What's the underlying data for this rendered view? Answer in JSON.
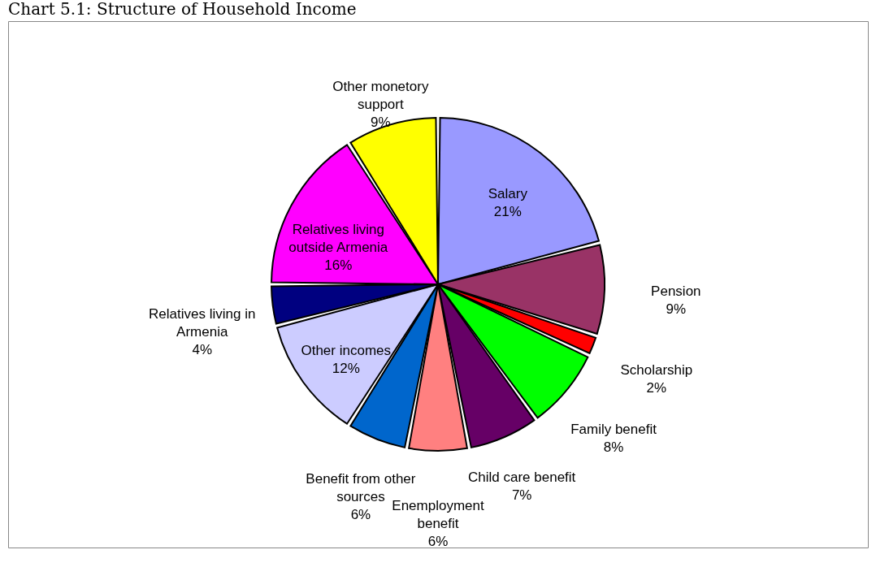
{
  "chart_data": {
    "type": "pie",
    "title": "Chart 5.1: Structure of Household Income",
    "categories": [
      "Salary",
      "Pension",
      "Scholarship",
      "Family benefit",
      "Child care benefit",
      "Enemployment benefit",
      "Benefit from other sources",
      "Other incomes",
      "Relatives living in Armenia",
      "Relatives living outside Armenia",
      "Other monetory support"
    ],
    "values": [
      21,
      9,
      2,
      8,
      7,
      6,
      6,
      12,
      4,
      16,
      9
    ],
    "value_labels": [
      "21%",
      "9%",
      "2%",
      "8%",
      "7%",
      "6%",
      "6%",
      "12%",
      "4%",
      "16%",
      "9%"
    ],
    "colors": [
      "#9999ff",
      "#993366",
      "#ff0000",
      "#00ff00",
      "#660066",
      "#ff8080",
      "#0066cc",
      "#ccccff",
      "#000080",
      "#ff00ff",
      "#ffff00"
    ],
    "legend": false
  }
}
